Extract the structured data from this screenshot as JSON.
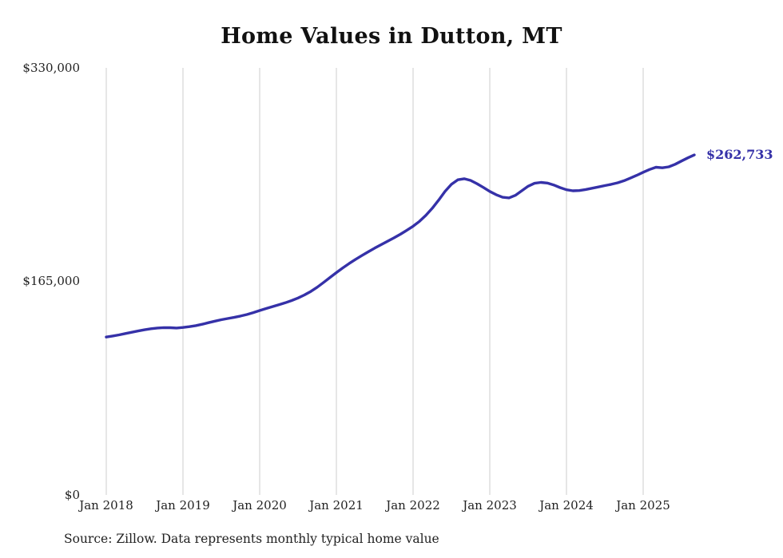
{
  "title": "Home Values in Dutton, MT",
  "end_label": "$262,733",
  "source_note": "Source: Zillow. Data represents monthly typical home value",
  "colors": {
    "line": "#3531a8",
    "grid": "#cccccc",
    "end_label": "#3531a8",
    "text": "#222222"
  },
  "chart_data": {
    "type": "line",
    "title": "Home Values in Dutton, MT",
    "series_name": "Monthly typical home value",
    "ylim": [
      0,
      330000
    ],
    "y_tick_labels": [
      "$0",
      "$165,000",
      "$330,000"
    ],
    "x_tick_labels": [
      "Jan 2018",
      "Jan 2019",
      "Jan 2020",
      "Jan 2021",
      "Jan 2022",
      "Jan 2023",
      "Jan 2024",
      "Jan 2025"
    ],
    "grid": "vertical-only",
    "legend": "none",
    "last_value": 262733,
    "x": [
      "2018-01",
      "2018-02",
      "2018-03",
      "2018-04",
      "2018-05",
      "2018-06",
      "2018-07",
      "2018-08",
      "2018-09",
      "2018-10",
      "2018-11",
      "2018-12",
      "2019-01",
      "2019-02",
      "2019-03",
      "2019-04",
      "2019-05",
      "2019-06",
      "2019-07",
      "2019-08",
      "2019-09",
      "2019-10",
      "2019-11",
      "2019-12",
      "2020-01",
      "2020-02",
      "2020-03",
      "2020-04",
      "2020-05",
      "2020-06",
      "2020-07",
      "2020-08",
      "2020-09",
      "2020-10",
      "2020-11",
      "2020-12",
      "2021-01",
      "2021-02",
      "2021-03",
      "2021-04",
      "2021-05",
      "2021-06",
      "2021-07",
      "2021-08",
      "2021-09",
      "2021-10",
      "2021-11",
      "2021-12",
      "2022-01",
      "2022-02",
      "2022-03",
      "2022-04",
      "2022-05",
      "2022-06",
      "2022-07",
      "2022-08",
      "2022-09",
      "2022-10",
      "2022-11",
      "2022-12",
      "2023-01",
      "2023-02",
      "2023-03",
      "2023-04",
      "2023-05",
      "2023-06",
      "2023-07",
      "2023-08",
      "2023-09",
      "2023-10",
      "2023-11",
      "2023-12",
      "2024-01",
      "2024-02",
      "2024-03",
      "2024-04",
      "2024-05",
      "2024-06",
      "2024-07",
      "2024-08",
      "2024-09",
      "2024-10",
      "2024-11",
      "2024-12",
      "2025-01",
      "2025-02",
      "2025-03",
      "2025-04",
      "2025-05",
      "2025-06",
      "2025-07",
      "2025-08",
      "2025-09"
    ],
    "values": [
      122000,
      122800,
      123700,
      124700,
      125700,
      126700,
      127600,
      128400,
      129000,
      129300,
      129200,
      129000,
      129400,
      130000,
      130800,
      131900,
      133100,
      134300,
      135400,
      136300,
      137200,
      138200,
      139400,
      140900,
      142500,
      144000,
      145500,
      147000,
      148500,
      150200,
      152200,
      154500,
      157200,
      160500,
      164200,
      168000,
      171800,
      175400,
      178800,
      182000,
      185000,
      187900,
      190700,
      193400,
      196000,
      198600,
      201400,
      204400,
      207600,
      211400,
      216000,
      221500,
      227800,
      234500,
      240000,
      243500,
      244300,
      243000,
      240500,
      237600,
      234500,
      232000,
      230000,
      229500,
      231500,
      235000,
      238500,
      240800,
      241500,
      241000,
      239500,
      237500,
      235800,
      235000,
      235200,
      236000,
      237000,
      238000,
      239000,
      240000,
      241200,
      242800,
      244800,
      247000,
      249300,
      251500,
      253200,
      252800,
      253500,
      255500,
      258000,
      260500,
      262733
    ]
  }
}
